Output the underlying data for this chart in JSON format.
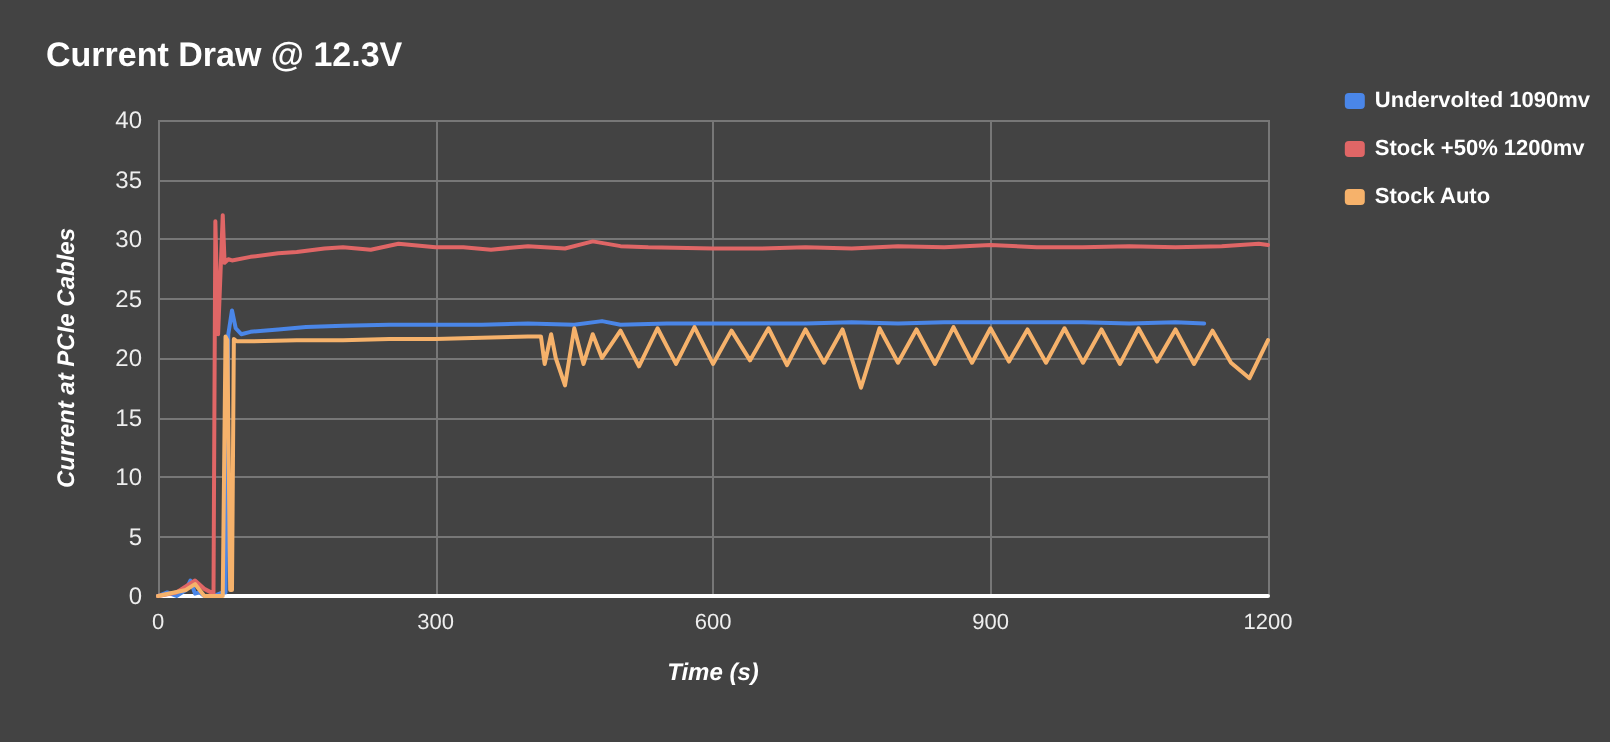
{
  "chart_data": {
    "type": "line",
    "title": "Current Draw @ 12.3V",
    "xlabel": "Time (s)",
    "ylabel": "Current at PCIe Cables",
    "xlim": [
      0,
      1200
    ],
    "xticks": [
      0,
      300,
      600,
      900,
      1200
    ],
    "ylim": [
      0,
      40
    ],
    "yticks": [
      0,
      5,
      10,
      15,
      20,
      25,
      30,
      35,
      40
    ],
    "grid": true,
    "legend": "top right",
    "marker": "none",
    "line_style": "solid",
    "series": [
      {
        "name": "Undervolted 1090mv",
        "color": "#4a86e8",
        "x": [
          0,
          10,
          20,
          30,
          35,
          40,
          45,
          50,
          60,
          70,
          73,
          76,
          80,
          84,
          90,
          100,
          130,
          160,
          200,
          250,
          300,
          350,
          400,
          450,
          480,
          500,
          550,
          600,
          650,
          700,
          750,
          800,
          850,
          900,
          950,
          1000,
          1050,
          1100,
          1131
        ],
        "values": [
          0,
          0.3,
          0,
          0.5,
          1.3,
          0.2,
          0.3,
          0,
          0,
          0.3,
          0.3,
          22,
          24,
          22.5,
          22,
          22.2,
          22.4,
          22.6,
          22.7,
          22.8,
          22.8,
          22.8,
          22.9,
          22.8,
          23.1,
          22.8,
          22.9,
          22.9,
          22.9,
          22.9,
          23,
          22.9,
          23,
          23,
          23,
          23,
          22.9,
          23,
          22.9
        ]
      },
      {
        "name": "Stock +50% 1200mv",
        "color": "#e06666",
        "x": [
          0,
          20,
          30,
          40,
          50,
          60,
          62,
          65,
          68,
          70,
          72,
          76,
          80,
          100,
          130,
          150,
          180,
          200,
          230,
          260,
          300,
          330,
          360,
          400,
          440,
          470,
          500,
          530,
          600,
          650,
          700,
          750,
          800,
          850,
          900,
          950,
          1000,
          1050,
          1100,
          1150,
          1190,
          1200
        ],
        "values": [
          0,
          0.3,
          0.8,
          1.3,
          0.6,
          0.2,
          31.5,
          22,
          28,
          32,
          28,
          28.3,
          28.2,
          28.5,
          28.8,
          28.9,
          29.2,
          29.3,
          29.1,
          29.6,
          29.3,
          29.3,
          29.1,
          29.4,
          29.2,
          29.8,
          29.4,
          29.3,
          29.2,
          29.2,
          29.3,
          29.2,
          29.4,
          29.3,
          29.5,
          29.3,
          29.3,
          29.4,
          29.3,
          29.4,
          29.6,
          29.5
        ]
      },
      {
        "name": "Stock Auto",
        "color": "#f6b26b",
        "x": [
          0,
          30,
          40,
          50,
          70,
          73,
          75,
          78,
          80,
          82,
          85,
          100,
          150,
          200,
          250,
          300,
          350,
          400,
          414,
          418,
          425,
          430,
          440,
          450,
          460,
          470,
          480,
          500,
          520,
          540,
          560,
          580,
          600,
          620,
          640,
          660,
          680,
          700,
          720,
          740,
          760,
          780,
          800,
          820,
          840,
          860,
          880,
          900,
          920,
          940,
          960,
          980,
          1000,
          1020,
          1040,
          1060,
          1080,
          1100,
          1120,
          1140,
          1160,
          1180,
          1200
        ],
        "values": [
          0,
          0.5,
          1,
          0,
          0,
          21.8,
          21.5,
          0.5,
          0.5,
          21.6,
          21.4,
          21.4,
          21.5,
          21.5,
          21.6,
          21.6,
          21.7,
          21.8,
          21.8,
          19.5,
          22,
          20,
          17.7,
          22.5,
          19.5,
          22,
          20,
          22.3,
          19.3,
          22.5,
          19.5,
          22.6,
          19.5,
          22.3,
          19.8,
          22.5,
          19.4,
          22.4,
          19.6,
          22.4,
          17.5,
          22.5,
          19.6,
          22.4,
          19.5,
          22.6,
          19.6,
          22.5,
          19.7,
          22.4,
          19.6,
          22.5,
          19.6,
          22.4,
          19.5,
          22.5,
          19.7,
          22.4,
          19.5,
          22.3,
          19.6,
          18.3,
          21.5
        ]
      }
    ]
  }
}
